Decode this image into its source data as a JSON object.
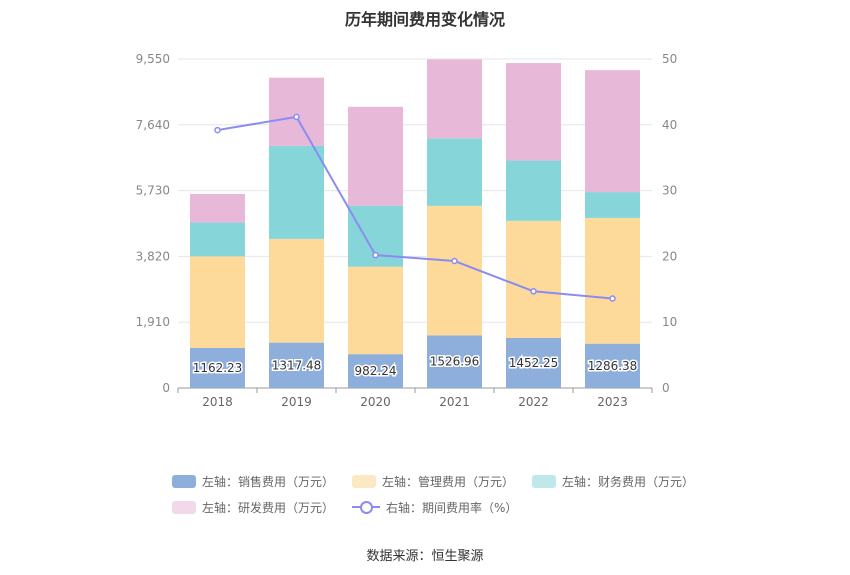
{
  "chart_data": {
    "type": "bar",
    "stacked": true,
    "title": "历年期间费用变化情况",
    "categories": [
      "2018",
      "2019",
      "2020",
      "2021",
      "2022",
      "2023"
    ],
    "left_axis": {
      "ylim": [
        0,
        9550
      ],
      "ticks": [
        "0",
        "1,910",
        "3,820",
        "5,730",
        "7,640",
        "9,550"
      ]
    },
    "right_axis": {
      "ylim": [
        0,
        50
      ],
      "ticks": [
        "0",
        "10",
        "20",
        "30",
        "40",
        "50"
      ]
    },
    "series": [
      {
        "name": "左轴：销售费用（万元）",
        "axis": "left",
        "type": "bar",
        "color": "#8eaedc",
        "values": [
          1162.23,
          1317.48,
          982.24,
          1526.96,
          1452.25,
          1286.38
        ],
        "labels": [
          "1162.23",
          "1317.48",
          "982.24",
          "1526.96",
          "1452.25",
          "1286.38"
        ]
      },
      {
        "name": "左轴：管理费用（万元）",
        "axis": "left",
        "type": "bar",
        "color": "#fdd99a",
        "values": [
          2660,
          3010,
          2540,
          3760,
          3400,
          3650
        ]
      },
      {
        "name": "左轴：财务费用（万元）",
        "axis": "left",
        "type": "bar",
        "color": "#86d5d8",
        "values": [
          980,
          2700,
          1770,
          1960,
          1750,
          750
        ]
      },
      {
        "name": "左轴：研发费用（万元）",
        "axis": "left",
        "type": "bar",
        "color": "#e8b8d9",
        "values": [
          830,
          1980,
          2870,
          2290,
          2830,
          3540
        ]
      },
      {
        "name": "右轴：期间费用率（%）",
        "axis": "right",
        "type": "line",
        "color": "#8a8cf2",
        "values": [
          39.2,
          41.2,
          20.2,
          19.3,
          14.7,
          13.6
        ]
      }
    ],
    "legend_position": "bottom"
  },
  "source": "数据来源：恒生聚源"
}
